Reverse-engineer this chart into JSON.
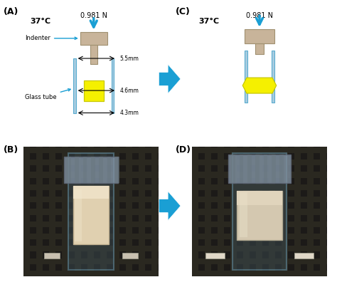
{
  "bg_color": "#f2d9be",
  "border_color": "#6bbdd4",
  "arrow_color": "#1a9fd4",
  "temp_text": "37°C",
  "force_text": "0.981 N",
  "indenter_color": "#c8b49a",
  "indenter_edge": "#a09070",
  "stem_color": "#c8b49a",
  "tube_color": "#a8cce0",
  "tube_edge": "#5aaccf",
  "polymer_color": "#f5f000",
  "polymer_edge": "#c8c800",
  "dim_55": "5.5mm",
  "dim_46": "4.6mm",
  "dim_43": "4.3mm",
  "label_indenter": "Indenter",
  "label_glass": "Glass tube",
  "panel_A_label": "(A)",
  "panel_B_label": "(B)",
  "panel_C_label": "(C)",
  "panel_D_label": "(D)"
}
